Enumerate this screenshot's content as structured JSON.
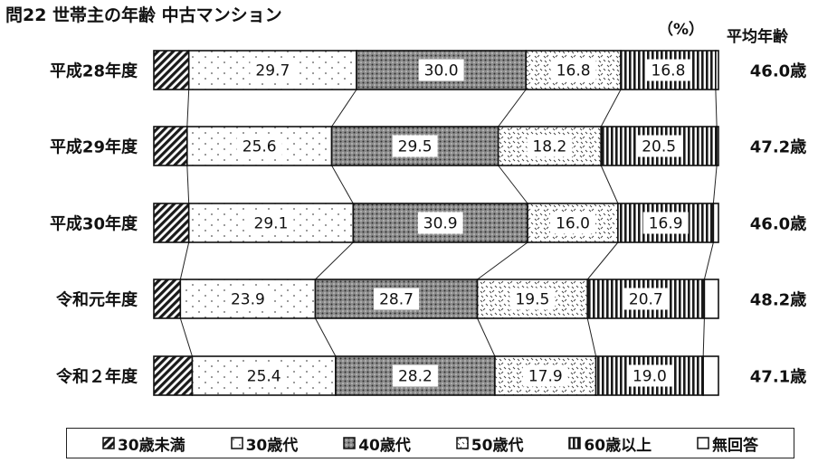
{
  "title": "問22 世帯主の年齢 中古マンション",
  "unit_label": "（%）",
  "avg_header": "平均年齢",
  "chart_data": {
    "type": "bar",
    "orientation": "horizontal",
    "stacked": true,
    "percent": true,
    "categories": [
      "平成28年度",
      "平成29年度",
      "平成30年度",
      "令和元年度",
      "令和２年度"
    ],
    "series": [
      {
        "name": "30歳未満",
        "values": [
          6.2,
          5.9,
          6.2,
          4.7,
          6.8
        ],
        "pattern": "diagonal-hatch"
      },
      {
        "name": "30歳代",
        "values": [
          29.7,
          25.6,
          29.1,
          23.9,
          25.4
        ],
        "pattern": "sparse-dots"
      },
      {
        "name": "40歳代",
        "values": [
          30.0,
          29.5,
          30.9,
          28.7,
          28.2
        ],
        "pattern": "dense-dots"
      },
      {
        "name": "50歳代",
        "values": [
          16.8,
          18.2,
          16.0,
          19.5,
          17.9
        ],
        "pattern": "scattered-marks"
      },
      {
        "name": "60歳以上",
        "values": [
          16.8,
          20.5,
          16.9,
          20.7,
          19.0
        ],
        "pattern": "vertical-stripes"
      },
      {
        "name": "無回答",
        "values": [
          0.5,
          0.3,
          0.9,
          2.5,
          2.7
        ],
        "pattern": "white"
      }
    ],
    "labels": [
      [
        "",
        "29.7",
        "30.0",
        "16.8",
        "16.8",
        ""
      ],
      [
        "",
        "25.6",
        "29.5",
        "18.2",
        "20.5",
        ""
      ],
      [
        "",
        "29.1",
        "30.9",
        "16.0",
        "16.9",
        ""
      ],
      [
        "",
        "23.9",
        "28.7",
        "19.5",
        "20.7",
        ""
      ],
      [
        "",
        "25.4",
        "28.2",
        "17.9",
        "19.0",
        ""
      ]
    ],
    "average_age": [
      "46.0歳",
      "47.2歳",
      "46.0歳",
      "48.2歳",
      "47.1歳"
    ],
    "connectors": true,
    "legend_position": "bottom"
  }
}
